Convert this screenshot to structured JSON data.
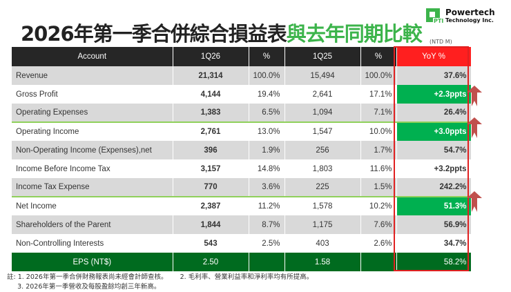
{
  "title": {
    "main": "2026年第一季合併綜合損益表",
    "accent": "與去年同期比較"
  },
  "logo": {
    "name": "Powertech",
    "sub": "Technology Inc.",
    "mark": "PTI"
  },
  "unit": "(NTD M)",
  "headers": [
    "Account",
    "1Q26",
    "%",
    "1Q25",
    "%",
    "YoY %"
  ],
  "rows": [
    {
      "account": "Revenue",
      "q26": "21,314",
      "p26": "100.0%",
      "q25": "15,494",
      "p25": "100.0%",
      "yoy": "37.6%"
    },
    {
      "account": "Gross Profit",
      "q26": "4,144",
      "p26": "19.4%",
      "q25": "2,641",
      "p25": "17.1%",
      "yoy": "+2.3ppts"
    },
    {
      "account": "Operating Expenses",
      "q26": "1,383",
      "p26": "6.5%",
      "q25": "1,094",
      "p25": "7.1%",
      "yoy": "26.4%"
    },
    {
      "account": "Operating Income",
      "q26": "2,761",
      "p26": "13.0%",
      "q25": "1,547",
      "p25": "10.0%",
      "yoy": "+3.0ppts"
    },
    {
      "account": "Non-Operating Income (Expenses),net",
      "q26": "396",
      "p26": "1.9%",
      "q25": "256",
      "p25": "1.7%",
      "yoy": "54.7%"
    },
    {
      "account": "Income Before Income Tax",
      "q26": "3,157",
      "p26": "14.8%",
      "q25": "1,803",
      "p25": "11.6%",
      "yoy": "+3.2ppts"
    },
    {
      "account": "Income Tax Expense",
      "q26": "770",
      "p26": "3.6%",
      "q25": "225",
      "p25": "1.5%",
      "yoy": "242.2%"
    },
    {
      "account": "Net Income",
      "q26": "2,387",
      "p26": "11.2%",
      "q25": "1,578",
      "p25": "10.2%",
      "yoy": "51.3%"
    },
    {
      "account": "Shareholders of the Parent",
      "q26": "1,844",
      "p26": "8.7%",
      "q25": "1,175",
      "p25": "7.6%",
      "yoy": "56.9%"
    },
    {
      "account": "Non-Controlling Interests",
      "q26": "543",
      "p26": "2.5%",
      "q25": "403",
      "p25": "2.6%",
      "yoy": "34.7%"
    }
  ],
  "eps": {
    "account": "EPS (NT$)",
    "q26": "2.50",
    "q25": "1.58",
    "yoy": "58.2%"
  },
  "notes": {
    "n1": "註: 1. 2026年第一季合併財務報表尚未經會計師查核。",
    "n2": "2. 毛利率、營業利益率和淨利率均有所提高。",
    "n3": "3. 2026年第一季營收及每股盈餘均創三年新高。"
  },
  "colors": {
    "highlight": "#00b050",
    "eps": "#006b1f",
    "border": "#e02020"
  }
}
